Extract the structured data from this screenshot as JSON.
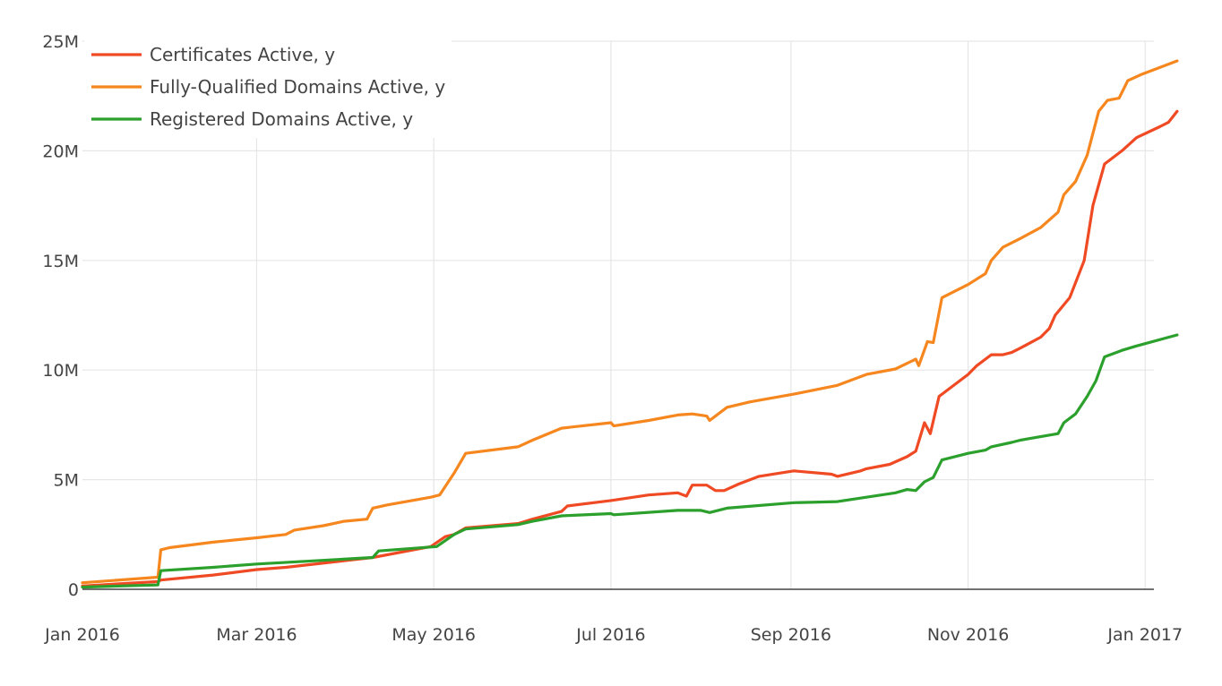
{
  "chart_data": {
    "type": "line",
    "title": "",
    "xlabel": "",
    "ylabel": "",
    "x_ticks": [
      {
        "label": "Jan 2016",
        "day": 0
      },
      {
        "label": "Mar 2016",
        "day": 60
      },
      {
        "label": "May 2016",
        "day": 121
      },
      {
        "label": "Jul 2016",
        "day": 182
      },
      {
        "label": "Sep 2016",
        "day": 244
      },
      {
        "label": "Nov 2016",
        "day": 305
      },
      {
        "label": "Jan 2017",
        "day": 366
      }
    ],
    "y_ticks": [
      {
        "label": "0",
        "value": 0
      },
      {
        "label": "5M",
        "value": 5000000
      },
      {
        "label": "10M",
        "value": 10000000
      },
      {
        "label": "15M",
        "value": 15000000
      },
      {
        "label": "20M",
        "value": 20000000
      },
      {
        "label": "25M",
        "value": 25000000
      }
    ],
    "xlim_day": [
      0,
      369
    ],
    "ylim": [
      0,
      25000000
    ],
    "grid": true,
    "legend_position": "top-left",
    "series": [
      {
        "name": "Certificates Active, y",
        "color": "#ef4a23",
        "points": [
          [
            0,
            0.15
          ],
          [
            26,
            0.35
          ],
          [
            27,
            0.42
          ],
          [
            45,
            0.65
          ],
          [
            60,
            0.9
          ],
          [
            70,
            1.0
          ],
          [
            90,
            1.3
          ],
          [
            100,
            1.45
          ],
          [
            120,
            1.95
          ],
          [
            125,
            2.4
          ],
          [
            128,
            2.5
          ],
          [
            132,
            2.8
          ],
          [
            150,
            3.0
          ],
          [
            155,
            3.2
          ],
          [
            165,
            3.55
          ],
          [
            167,
            3.8
          ],
          [
            182,
            4.05
          ],
          [
            195,
            4.3
          ],
          [
            205,
            4.4
          ],
          [
            208,
            4.25
          ],
          [
            210,
            4.75
          ],
          [
            215,
            4.75
          ],
          [
            218,
            4.5
          ],
          [
            221,
            4.5
          ],
          [
            226,
            4.8
          ],
          [
            233,
            5.15
          ],
          [
            245,
            5.4
          ],
          [
            258,
            5.25
          ],
          [
            260,
            5.15
          ],
          [
            268,
            5.4
          ],
          [
            270,
            5.5
          ],
          [
            278,
            5.7
          ],
          [
            284,
            6.05
          ],
          [
            287,
            6.3
          ],
          [
            290,
            7.6
          ],
          [
            292,
            7.1
          ],
          [
            295,
            8.8
          ],
          [
            305,
            9.8
          ],
          [
            308,
            10.2
          ],
          [
            313,
            10.7
          ],
          [
            317,
            10.7
          ],
          [
            320,
            10.8
          ],
          [
            323,
            11.0
          ],
          [
            330,
            11.5
          ],
          [
            333,
            11.9
          ],
          [
            335,
            12.5
          ],
          [
            340,
            13.3
          ],
          [
            345,
            15.0
          ],
          [
            348,
            17.5
          ],
          [
            352,
            19.4
          ],
          [
            358,
            20.0
          ],
          [
            363,
            20.6
          ],
          [
            371,
            21.1
          ],
          [
            374,
            21.3
          ],
          [
            377,
            21.8
          ]
        ]
      },
      {
        "name": "Fully-Qualified Domains Active, y",
        "color": "#f6871f",
        "points": [
          [
            0,
            0.3
          ],
          [
            26,
            0.55
          ],
          [
            27,
            1.8
          ],
          [
            30,
            1.9
          ],
          [
            45,
            2.15
          ],
          [
            60,
            2.35
          ],
          [
            70,
            2.5
          ],
          [
            73,
            2.7
          ],
          [
            83,
            2.9
          ],
          [
            90,
            3.1
          ],
          [
            98,
            3.2
          ],
          [
            100,
            3.7
          ],
          [
            105,
            3.85
          ],
          [
            120,
            4.2
          ],
          [
            123,
            4.3
          ],
          [
            128,
            5.3
          ],
          [
            132,
            6.2
          ],
          [
            150,
            6.5
          ],
          [
            155,
            6.8
          ],
          [
            165,
            7.35
          ],
          [
            182,
            7.6
          ],
          [
            183,
            7.45
          ],
          [
            195,
            7.7
          ],
          [
            205,
            7.95
          ],
          [
            210,
            8.0
          ],
          [
            215,
            7.9
          ],
          [
            216,
            7.7
          ],
          [
            222,
            8.3
          ],
          [
            230,
            8.55
          ],
          [
            245,
            8.9
          ],
          [
            260,
            9.3
          ],
          [
            270,
            9.8
          ],
          [
            280,
            10.05
          ],
          [
            287,
            10.5
          ],
          [
            288,
            10.2
          ],
          [
            291,
            11.3
          ],
          [
            293,
            11.25
          ],
          [
            296,
            13.3
          ],
          [
            305,
            13.9
          ],
          [
            311,
            14.4
          ],
          [
            313,
            15.0
          ],
          [
            317,
            15.6
          ],
          [
            320,
            15.8
          ],
          [
            323,
            16.0
          ],
          [
            330,
            16.5
          ],
          [
            336,
            17.2
          ],
          [
            338,
            18.0
          ],
          [
            342,
            18.6
          ],
          [
            346,
            19.8
          ],
          [
            350,
            21.8
          ],
          [
            353,
            22.3
          ],
          [
            357,
            22.4
          ],
          [
            360,
            23.2
          ],
          [
            365,
            23.5
          ],
          [
            371,
            23.8
          ],
          [
            377,
            24.1
          ]
        ]
      },
      {
        "name": "Registered Domains Active, y",
        "color": "#2ca02c",
        "points": [
          [
            0,
            0.1
          ],
          [
            26,
            0.2
          ],
          [
            27,
            0.85
          ],
          [
            45,
            1.0
          ],
          [
            60,
            1.15
          ],
          [
            80,
            1.3
          ],
          [
            100,
            1.45
          ],
          [
            102,
            1.75
          ],
          [
            122,
            1.95
          ],
          [
            128,
            2.5
          ],
          [
            132,
            2.75
          ],
          [
            150,
            2.95
          ],
          [
            155,
            3.1
          ],
          [
            165,
            3.35
          ],
          [
            182,
            3.45
          ],
          [
            183,
            3.4
          ],
          [
            205,
            3.6
          ],
          [
            213,
            3.6
          ],
          [
            216,
            3.5
          ],
          [
            222,
            3.7
          ],
          [
            245,
            3.95
          ],
          [
            260,
            4.0
          ],
          [
            270,
            4.2
          ],
          [
            280,
            4.4
          ],
          [
            284,
            4.55
          ],
          [
            287,
            4.5
          ],
          [
            290,
            4.9
          ],
          [
            293,
            5.1
          ],
          [
            296,
            5.9
          ],
          [
            305,
            6.2
          ],
          [
            311,
            6.35
          ],
          [
            313,
            6.5
          ],
          [
            320,
            6.7
          ],
          [
            323,
            6.8
          ],
          [
            336,
            7.1
          ],
          [
            338,
            7.6
          ],
          [
            342,
            8.0
          ],
          [
            346,
            8.8
          ],
          [
            349,
            9.5
          ],
          [
            352,
            10.6
          ],
          [
            358,
            10.9
          ],
          [
            363,
            11.1
          ],
          [
            377,
            11.6
          ]
        ]
      }
    ]
  }
}
